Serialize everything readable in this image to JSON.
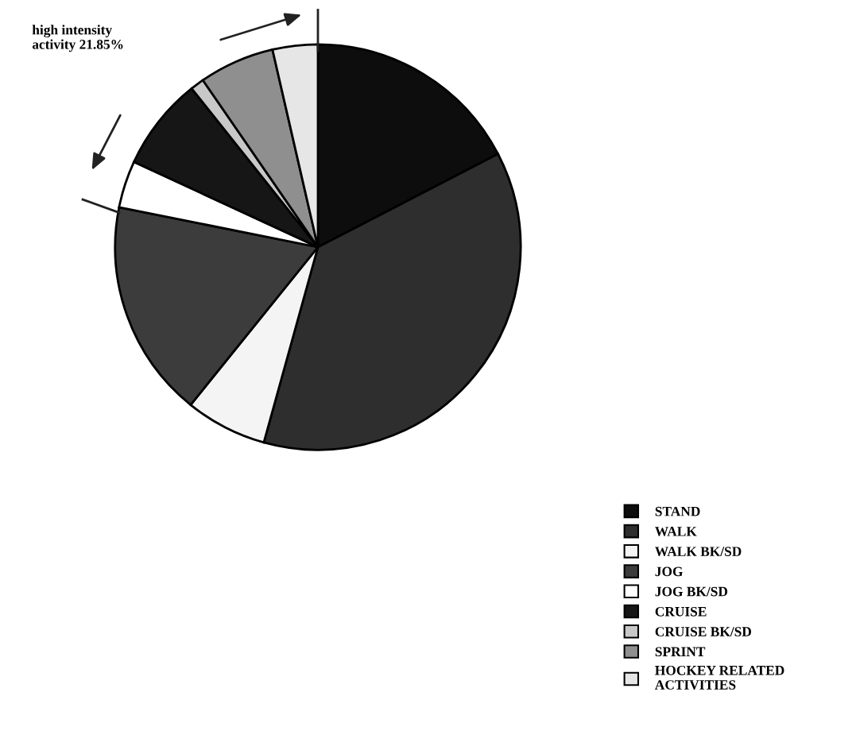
{
  "chart_data": {
    "type": "pie",
    "categories": [
      "STAND",
      "WALK",
      "WALK BK/SD",
      "JOG",
      "JOG BK/SD",
      "CRUISE",
      "CRUISE BK/SD",
      "SPRINT",
      "HOCKEY RELATED ACTIVITIES"
    ],
    "values": [
      17.4,
      36.9,
      6.5,
      17.35,
      3.75,
      7.4,
      1.1,
      6.0,
      3.6
    ],
    "colors": [
      "#0d0d0d",
      "#2e2e2e",
      "#f4f4f4",
      "#3c3c3c",
      "#ffffff",
      "#161616",
      "#c8c8c8",
      "#8f8f8f",
      "#e6e6e6"
    ],
    "legend": "bottom right",
    "annotations": [
      "high intensity\nactivity 21.85%"
    ]
  }
}
